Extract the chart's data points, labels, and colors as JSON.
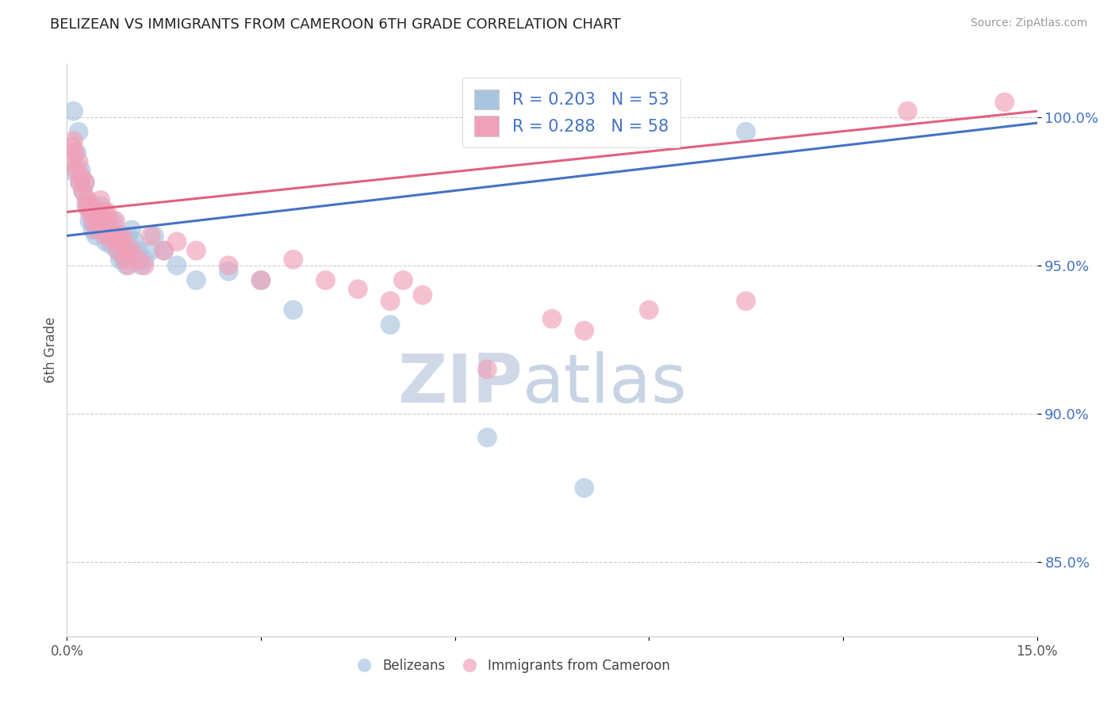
{
  "title": "BELIZEAN VS IMMIGRANTS FROM CAMEROON 6TH GRADE CORRELATION CHART",
  "source": "Source: ZipAtlas.com",
  "ylabel": "6th Grade",
  "xmin": 0.0,
  "xmax": 15.0,
  "ymin": 82.5,
  "ymax": 101.8,
  "yticks": [
    85.0,
    90.0,
    95.0,
    100.0
  ],
  "ytick_labels": [
    "85.0%",
    "90.0%",
    "95.0%",
    "100.0%"
  ],
  "blue_R": 0.203,
  "blue_N": 53,
  "pink_R": 0.288,
  "pink_N": 58,
  "blue_color": "#a8c4e0",
  "pink_color": "#f0a0b8",
  "blue_line_color": "#4472c4",
  "pink_line_color": "#e06080",
  "legend_R_color": "#4472c4",
  "blue_dots": [
    [
      0.05,
      98.2
    ],
    [
      0.1,
      100.2
    ],
    [
      0.15,
      98.8
    ],
    [
      0.18,
      99.5
    ],
    [
      0.2,
      97.8
    ],
    [
      0.22,
      98.2
    ],
    [
      0.25,
      97.5
    ],
    [
      0.28,
      97.8
    ],
    [
      0.3,
      97.2
    ],
    [
      0.32,
      97.0
    ],
    [
      0.35,
      96.5
    ],
    [
      0.38,
      96.8
    ],
    [
      0.4,
      96.2
    ],
    [
      0.42,
      96.5
    ],
    [
      0.45,
      96.0
    ],
    [
      0.48,
      96.3
    ],
    [
      0.5,
      96.8
    ],
    [
      0.52,
      97.0
    ],
    [
      0.55,
      96.5
    ],
    [
      0.58,
      96.2
    ],
    [
      0.6,
      95.8
    ],
    [
      0.62,
      96.5
    ],
    [
      0.65,
      96.0
    ],
    [
      0.68,
      95.7
    ],
    [
      0.7,
      96.2
    ],
    [
      0.72,
      96.5
    ],
    [
      0.75,
      96.0
    ],
    [
      0.78,
      95.5
    ],
    [
      0.8,
      95.8
    ],
    [
      0.82,
      95.2
    ],
    [
      0.85,
      95.5
    ],
    [
      0.88,
      95.2
    ],
    [
      0.9,
      95.5
    ],
    [
      0.92,
      95.0
    ],
    [
      0.95,
      96.0
    ],
    [
      0.98,
      95.5
    ],
    [
      1.0,
      96.2
    ],
    [
      1.05,
      95.8
    ],
    [
      1.1,
      95.5
    ],
    [
      1.15,
      95.0
    ],
    [
      1.2,
      95.2
    ],
    [
      1.3,
      95.5
    ],
    [
      1.35,
      96.0
    ],
    [
      1.5,
      95.5
    ],
    [
      1.7,
      95.0
    ],
    [
      2.0,
      94.5
    ],
    [
      2.5,
      94.8
    ],
    [
      3.0,
      94.5
    ],
    [
      3.5,
      93.5
    ],
    [
      5.0,
      93.0
    ],
    [
      6.5,
      89.2
    ],
    [
      8.0,
      87.5
    ],
    [
      10.5,
      99.5
    ]
  ],
  "pink_dots": [
    [
      0.05,
      98.5
    ],
    [
      0.08,
      99.0
    ],
    [
      0.1,
      99.2
    ],
    [
      0.12,
      98.8
    ],
    [
      0.15,
      98.2
    ],
    [
      0.18,
      98.5
    ],
    [
      0.2,
      97.8
    ],
    [
      0.22,
      98.0
    ],
    [
      0.25,
      97.5
    ],
    [
      0.28,
      97.8
    ],
    [
      0.3,
      97.0
    ],
    [
      0.32,
      97.2
    ],
    [
      0.35,
      96.8
    ],
    [
      0.38,
      97.0
    ],
    [
      0.4,
      96.5
    ],
    [
      0.42,
      96.8
    ],
    [
      0.45,
      96.2
    ],
    [
      0.48,
      96.5
    ],
    [
      0.5,
      96.8
    ],
    [
      0.52,
      97.2
    ],
    [
      0.55,
      96.5
    ],
    [
      0.58,
      96.8
    ],
    [
      0.6,
      96.0
    ],
    [
      0.62,
      96.8
    ],
    [
      0.65,
      96.5
    ],
    [
      0.68,
      96.2
    ],
    [
      0.7,
      96.0
    ],
    [
      0.72,
      95.8
    ],
    [
      0.75,
      96.5
    ],
    [
      0.78,
      96.0
    ],
    [
      0.8,
      95.5
    ],
    [
      0.85,
      96.0
    ],
    [
      0.88,
      95.8
    ],
    [
      0.9,
      95.2
    ],
    [
      0.92,
      95.5
    ],
    [
      0.95,
      95.0
    ],
    [
      1.0,
      95.5
    ],
    [
      1.1,
      95.2
    ],
    [
      1.2,
      95.0
    ],
    [
      1.3,
      96.0
    ],
    [
      1.5,
      95.5
    ],
    [
      1.7,
      95.8
    ],
    [
      2.0,
      95.5
    ],
    [
      2.5,
      95.0
    ],
    [
      3.0,
      94.5
    ],
    [
      3.5,
      95.2
    ],
    [
      4.0,
      94.5
    ],
    [
      4.5,
      94.2
    ],
    [
      5.0,
      93.8
    ],
    [
      5.2,
      94.5
    ],
    [
      5.5,
      94.0
    ],
    [
      6.5,
      91.5
    ],
    [
      7.5,
      93.2
    ],
    [
      8.0,
      92.8
    ],
    [
      9.0,
      93.5
    ],
    [
      10.5,
      93.8
    ],
    [
      13.0,
      100.2
    ],
    [
      14.5,
      100.5
    ]
  ],
  "blue_line": {
    "x0": 0.0,
    "y0": 96.0,
    "x1": 15.0,
    "y1": 99.8
  },
  "pink_line": {
    "x0": 0.0,
    "y0": 96.8,
    "x1": 15.0,
    "y1": 100.2
  },
  "watermark_zip": "ZIP",
  "watermark_atlas": "atlas",
  "grid_color": "#cccccc",
  "background_color": "#ffffff"
}
